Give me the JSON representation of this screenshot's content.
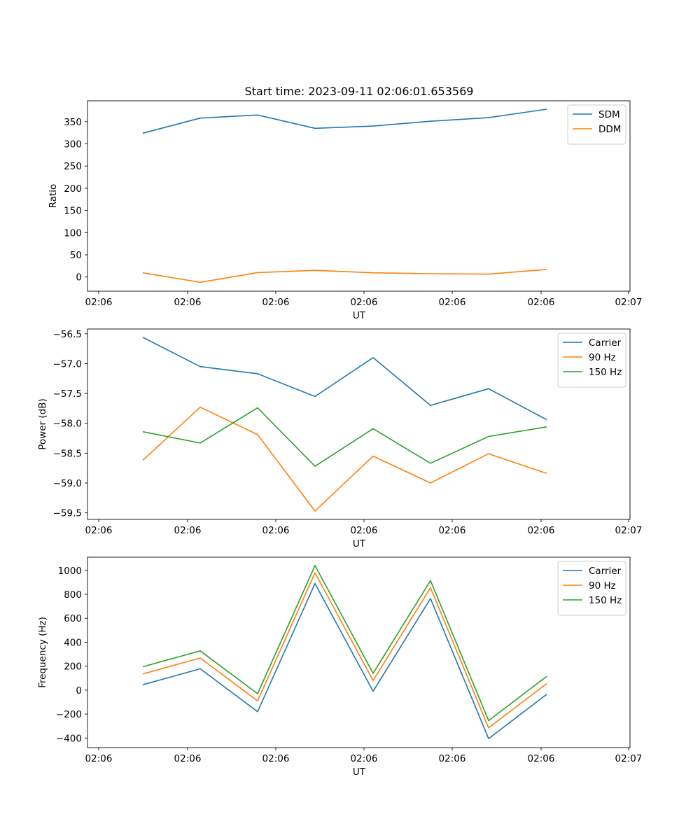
{
  "figure_title": "Start time: 2023-09-11 02:06:01.653569",
  "colors": {
    "blue": "#1f77b4",
    "orange": "#ff7f0e",
    "green": "#2ca02c"
  },
  "chart_data": [
    {
      "type": "line",
      "title": "Start time: 2023-09-11 02:06:01.653569",
      "xlabel": "UT",
      "ylabel": "Ratio",
      "x_tick_labels": [
        "02:06",
        "02:06",
        "02:06",
        "02:06",
        "02:06",
        "02:06",
        "02:06"
      ],
      "x_tick_label_last": "02:07",
      "ylim": [
        -32,
        397
      ],
      "y_ticks": [
        0,
        50,
        100,
        150,
        200,
        250,
        300,
        350
      ],
      "y_tick_labels": [
        "0",
        "50",
        "100",
        "150",
        "200",
        "250",
        "300",
        "350"
      ],
      "legend_position": "top-right",
      "series": [
        {
          "name": "SDM",
          "color": "#1f77b4",
          "values": [
            324,
            358,
            365,
            335,
            340,
            351,
            359,
            378
          ]
        },
        {
          "name": "DDM",
          "color": "#ff7f0e",
          "values": [
            9.5,
            -12,
            10,
            15,
            9.5,
            7.5,
            6.5,
            17
          ]
        }
      ]
    },
    {
      "type": "line",
      "xlabel": "UT",
      "ylabel": "Power (dB)",
      "x_tick_labels": [
        "02:06",
        "02:06",
        "02:06",
        "02:06",
        "02:06",
        "02:06",
        "02:06"
      ],
      "x_tick_label_last": "02:07",
      "ylim": [
        -59.61,
        -56.42
      ],
      "y_ticks": [
        -59.5,
        -59.0,
        -58.5,
        -58.0,
        -57.5,
        -57.0,
        -56.5
      ],
      "y_tick_labels": [
        "−59.5",
        "−59.0",
        "−58.5",
        "−58.0",
        "−57.5",
        "−57.0",
        "−56.5"
      ],
      "legend_position": "top-right",
      "series": [
        {
          "name": "Carrier",
          "color": "#1f77b4",
          "values": [
            -56.56,
            -57.05,
            -57.17,
            -57.55,
            -56.9,
            -57.7,
            -57.42,
            -57.94
          ]
        },
        {
          "name": "90 Hz",
          "color": "#ff7f0e",
          "values": [
            -58.62,
            -57.73,
            -58.19,
            -59.47,
            -58.55,
            -59.0,
            -58.51,
            -58.84
          ]
        },
        {
          "name": "150 Hz",
          "color": "#2ca02c",
          "values": [
            -58.14,
            -58.33,
            -57.74,
            -58.72,
            -58.09,
            -58.67,
            -58.22,
            -58.06
          ]
        }
      ]
    },
    {
      "type": "line",
      "xlabel": "UT",
      "ylabel": "Frequency (Hz)",
      "x_tick_labels": [
        "02:06",
        "02:06",
        "02:06",
        "02:06",
        "02:06",
        "02:06",
        "02:06"
      ],
      "x_tick_label_last": "02:07",
      "ylim": [
        -480,
        1110
      ],
      "y_ticks": [
        -400,
        -200,
        0,
        200,
        400,
        600,
        800,
        1000
      ],
      "y_tick_labels": [
        "−400",
        "−200",
        "0",
        "200",
        "400",
        "600",
        "800",
        "1000"
      ],
      "legend_position": "top-right",
      "series": [
        {
          "name": "Carrier",
          "color": "#1f77b4",
          "values": [
            45,
            178,
            -180,
            890,
            -10,
            765,
            -405,
            -35
          ]
        },
        {
          "name": "90 Hz",
          "color": "#ff7f0e",
          "values": [
            135,
            268,
            -90,
            980,
            80,
            855,
            -315,
            55
          ]
        },
        {
          "name": "150 Hz",
          "color": "#2ca02c",
          "values": [
            195,
            328,
            -30,
            1040,
            140,
            915,
            -255,
            115
          ]
        }
      ]
    }
  ]
}
